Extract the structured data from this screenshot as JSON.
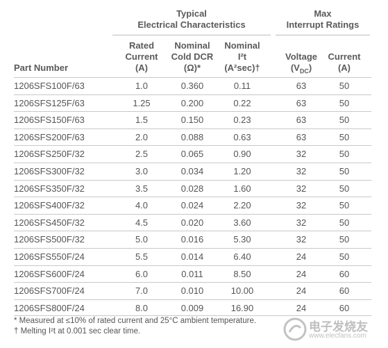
{
  "headers": {
    "group_electrical": [
      "Typical",
      "Electrical Characteristics"
    ],
    "group_max": [
      "Max",
      "Interrupt Ratings"
    ],
    "part_number": "Part Number",
    "rated_current": [
      "Rated",
      "Current",
      "(A)"
    ],
    "cold_dcr": [
      "Nominal",
      "Cold DCR",
      "(Ω)*"
    ],
    "i2t": [
      "Nominal",
      "I²t",
      "(A²sec)†"
    ],
    "voltage": [
      "Voltage",
      "(VDC)"
    ],
    "current": [
      "Current",
      "(A)"
    ]
  },
  "rows": [
    {
      "part": "1206SFS100F/63",
      "rated": "1.0",
      "dcr": "0.360",
      "i2t": "0.11",
      "volt": "63",
      "curr": "50"
    },
    {
      "part": "1206SFS125F/63",
      "rated": "1.25",
      "dcr": "0.200",
      "i2t": "0.22",
      "volt": "63",
      "curr": "50"
    },
    {
      "part": "1206SFS150F/63",
      "rated": "1.5",
      "dcr": "0.150",
      "i2t": "0.23",
      "volt": "63",
      "curr": "50"
    },
    {
      "part": "1206SFS200F/63",
      "rated": "2.0",
      "dcr": "0.088",
      "i2t": "0.63",
      "volt": "63",
      "curr": "50"
    },
    {
      "part": "1206SFS250F/32",
      "rated": "2.5",
      "dcr": "0.065",
      "i2t": "0.90",
      "volt": "32",
      "curr": "50"
    },
    {
      "part": "1206SFS300F/32",
      "rated": "3.0",
      "dcr": "0.034",
      "i2t": "1.20",
      "volt": "32",
      "curr": "50"
    },
    {
      "part": "1206SFS350F/32",
      "rated": "3.5",
      "dcr": "0.028",
      "i2t": "1.60",
      "volt": "32",
      "curr": "50"
    },
    {
      "part": "1206SFS400F/32",
      "rated": "4.0",
      "dcr": "0.024",
      "i2t": "2.20",
      "volt": "32",
      "curr": "50"
    },
    {
      "part": "1206SFS450F/32",
      "rated": "4.5",
      "dcr": "0.020",
      "i2t": "3.60",
      "volt": "32",
      "curr": "50"
    },
    {
      "part": "1206SFS500F/32",
      "rated": "5.0",
      "dcr": "0.016",
      "i2t": "5.30",
      "volt": "32",
      "curr": "50"
    },
    {
      "part": "1206SFS550F/24",
      "rated": "5.5",
      "dcr": "0.014",
      "i2t": "6.40",
      "volt": "24",
      "curr": "50"
    },
    {
      "part": "1206SFS600F/24",
      "rated": "6.0",
      "dcr": "0.011",
      "i2t": "8.50",
      "volt": "24",
      "curr": "60"
    },
    {
      "part": "1206SFS700F/24",
      "rated": "7.0",
      "dcr": "0.010",
      "i2t": "10.00",
      "volt": "24",
      "curr": "60"
    },
    {
      "part": "1206SFS800F/24",
      "rated": "8.0",
      "dcr": "0.009",
      "i2t": "16.90",
      "volt": "24",
      "curr": "60"
    }
  ],
  "notes": [
    "* Measured at ≤10% of rated current and 25°C ambient temperature.",
    "† Melting I²t at 0.001 sec clear time."
  ],
  "watermark": {
    "text": "电子发烧友",
    "url": "www.elecfans.com"
  },
  "colors": {
    "text": "#555555",
    "rule": "#c8c8c8"
  }
}
